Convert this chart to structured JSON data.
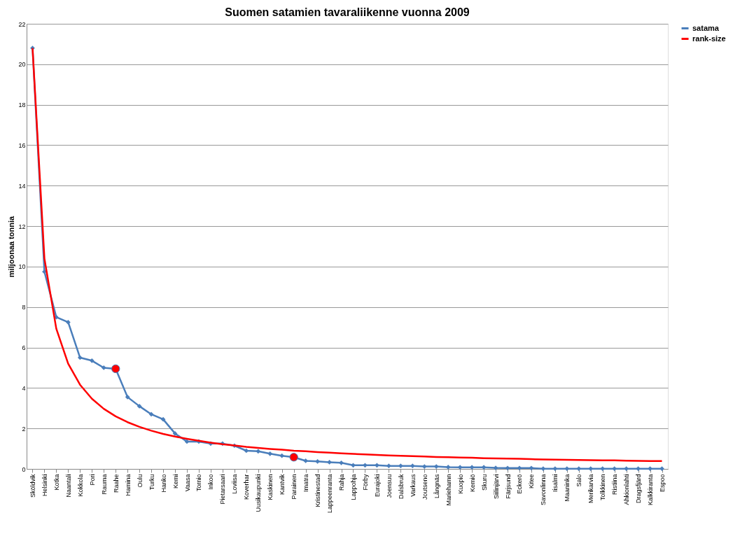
{
  "chart_data": {
    "type": "line",
    "title": "Suomen satamien tavaraliikenne vuonna 2009",
    "ylabel": "miljoonaa tonnia",
    "categories": [
      "Sköldvik",
      "Helsinki",
      "Kotka",
      "Naantali",
      "Kokkola",
      "Pori",
      "Rauma",
      "Raahe",
      "Hamina",
      "Oulu",
      "Turku",
      "Hanko",
      "Kemi",
      "Vaasa",
      "Tornio",
      "Inkoo",
      "Pietarsaari",
      "Loviisa",
      "Koverhar",
      "Uusikaupunki",
      "Kaskinen",
      "Kantvik",
      "Parainen",
      "Imatra",
      "Kristinestad",
      "Lappeenranta",
      "Rahja",
      "Lappohja",
      "Förby",
      "Eurajoki",
      "Joensuu",
      "Dalsbruk",
      "Varkaus",
      "Joutseno",
      "Långnäs",
      "Mariehamn",
      "Kuopio",
      "Kemiö",
      "Skuru",
      "Siilinjärvi",
      "Färjsund",
      "Eckerö",
      "Kitee",
      "Savonlinna",
      "Iisalmi",
      "Maaninka",
      "Salo",
      "Merikarvia",
      "Tolkkinen",
      "Ristiina",
      "Ahkionlahti",
      "Dragsfjärd",
      "Kalkkiranta",
      "Espoo"
    ],
    "series": [
      {
        "name": "satama",
        "color": "#4a7ebb",
        "marker": "diamond",
        "values": [
          20.8,
          9.75,
          7.5,
          7.25,
          5.5,
          5.35,
          5.0,
          4.95,
          3.55,
          3.1,
          2.7,
          2.45,
          1.75,
          1.35,
          1.35,
          1.25,
          1.25,
          1.15,
          0.9,
          0.87,
          0.75,
          0.65,
          0.58,
          0.4,
          0.37,
          0.33,
          0.3,
          0.18,
          0.18,
          0.18,
          0.15,
          0.15,
          0.15,
          0.12,
          0.12,
          0.09,
          0.08,
          0.08,
          0.08,
          0.05,
          0.04,
          0.04,
          0.04,
          0.01,
          0.01,
          0.01,
          0.01,
          0.01,
          0.01,
          0.01,
          0.01,
          0.01,
          0.01,
          0.01
        ]
      },
      {
        "name": "rank-size",
        "color": "#ff0000",
        "marker": "none",
        "values": [
          20.8,
          10.4,
          6.93,
          5.2,
          4.16,
          3.47,
          2.97,
          2.6,
          2.31,
          2.08,
          1.89,
          1.73,
          1.6,
          1.49,
          1.39,
          1.3,
          1.22,
          1.16,
          1.09,
          1.04,
          0.99,
          0.95,
          0.9,
          0.87,
          0.83,
          0.8,
          0.77,
          0.74,
          0.72,
          0.69,
          0.67,
          0.65,
          0.63,
          0.61,
          0.59,
          0.58,
          0.56,
          0.55,
          0.53,
          0.52,
          0.51,
          0.5,
          0.48,
          0.47,
          0.46,
          0.45,
          0.44,
          0.43,
          0.42,
          0.42,
          0.41,
          0.4,
          0.39,
          0.39
        ]
      },
      {
        "color": "#ff0000",
        "type": "scatter",
        "marker": "circle",
        "values": [
          null,
          null,
          null,
          null,
          null,
          null,
          null,
          4.95,
          null,
          null,
          null,
          null,
          null,
          null,
          null,
          null,
          null,
          null,
          null,
          null,
          null,
          null,
          0.58,
          null,
          null,
          null,
          null,
          null,
          null,
          null,
          null,
          null,
          null,
          null,
          null,
          null,
          null,
          null,
          null,
          null,
          null,
          null,
          null,
          null,
          null,
          null,
          null,
          null,
          null,
          null,
          null,
          null,
          null,
          null
        ]
      }
    ],
    "ylim": [
      0,
      22
    ],
    "yticks": [
      0,
      2,
      4,
      6,
      8,
      10,
      12,
      14,
      16,
      18,
      20,
      22
    ],
    "grid": "y",
    "legend": "right"
  }
}
